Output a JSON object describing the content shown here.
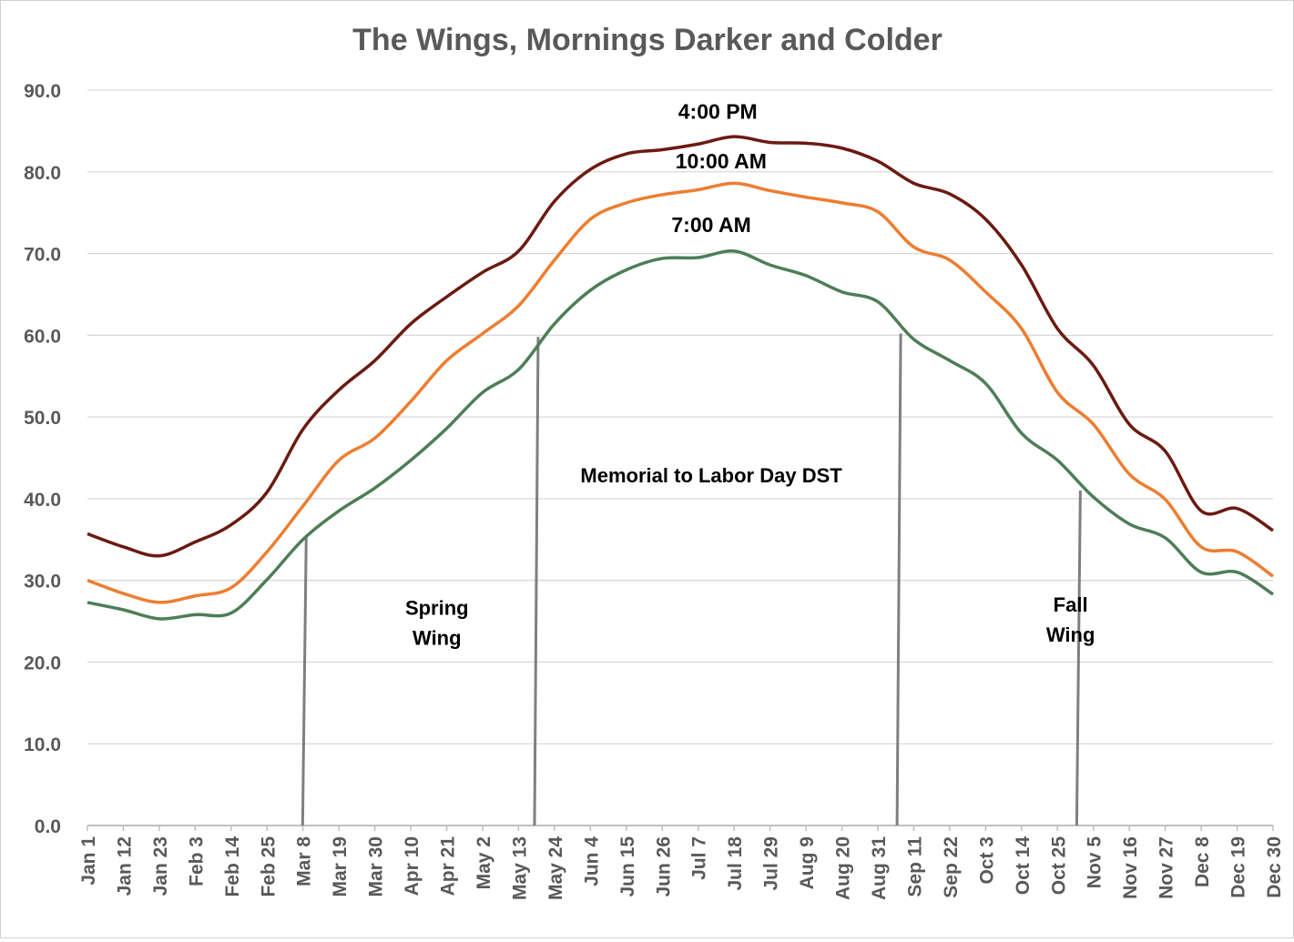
{
  "chart_data": {
    "type": "line",
    "title": "The Wings, Mornings Darker and Colder",
    "xlabel": "",
    "ylabel": "",
    "ylim": [
      0,
      90
    ],
    "yticks": [
      "0.0",
      "10.0",
      "20.0",
      "30.0",
      "40.0",
      "50.0",
      "60.0",
      "70.0",
      "80.0",
      "90.0"
    ],
    "grid": true,
    "legend": "none (series labelled inline)",
    "categories": [
      "Jan 1",
      "Jan 12",
      "Jan 23",
      "Feb 3",
      "Feb 14",
      "Feb 25",
      "Mar 8",
      "Mar 19",
      "Mar 30",
      "Apr 10",
      "Apr 21",
      "May 2",
      "May 13",
      "May 24",
      "Jun 4",
      "Jun 15",
      "Jun 26",
      "Jul 7",
      "Jul 18",
      "Jul 29",
      "Aug 9",
      "Aug 20",
      "Aug 31",
      "Sep 11",
      "Sep 22",
      "Oct 3",
      "Oct 14",
      "Oct 25",
      "Nov 5",
      "Nov 16",
      "Nov 27",
      "Dec 8",
      "Dec 19",
      "Dec 30"
    ],
    "series": [
      {
        "name": "4:00 PM",
        "color": "#6b1a12",
        "values": [
          35.7,
          34.1,
          33.0,
          34.7,
          36.8,
          40.8,
          48.5,
          53.3,
          56.9,
          61.4,
          64.7,
          67.7,
          70.3,
          76.4,
          80.3,
          82.2,
          82.7,
          83.4,
          84.3,
          83.6,
          83.5,
          82.9,
          81.3,
          78.6,
          77.3,
          74.2,
          68.6,
          60.8,
          56.3,
          49.1,
          45.8,
          38.5,
          38.8,
          36.1
        ]
      },
      {
        "name": "10:00 AM",
        "color": "#ed7d31",
        "values": [
          30.0,
          28.4,
          27.3,
          28.1,
          29.1,
          33.5,
          39.1,
          44.7,
          47.4,
          51.9,
          56.9,
          60.2,
          63.6,
          69.2,
          74.2,
          76.2,
          77.2,
          77.8,
          78.6,
          77.7,
          76.9,
          76.2,
          75.1,
          70.8,
          69.2,
          65.3,
          60.8,
          53.0,
          49.1,
          43.0,
          39.9,
          34.1,
          33.5,
          30.5
        ]
      },
      {
        "name": "7:00 AM",
        "color": "#4e7d57",
        "values": [
          27.3,
          26.4,
          25.3,
          25.8,
          26.0,
          30.1,
          35.0,
          38.5,
          41.3,
          44.7,
          48.6,
          53.0,
          55.8,
          61.4,
          65.5,
          68.0,
          69.4,
          69.5,
          70.3,
          68.6,
          67.3,
          65.3,
          64.1,
          59.5,
          56.9,
          54.1,
          48.0,
          44.7,
          40.2,
          36.9,
          35.2,
          31.0,
          31.0,
          28.3
        ]
      }
    ],
    "series_labels": [
      {
        "text": "4:00 PM",
        "x": "Jul 13",
        "y": 86.5
      },
      {
        "text": "10:00 AM",
        "x": "Jul 14",
        "y": 80.4
      },
      {
        "text": "7:00 AM",
        "x": "Jul 11",
        "y": 72.6
      }
    ],
    "markers": [
      {
        "x": "Mar 9",
        "y": 35.5
      },
      {
        "x": "May 19",
        "y": 59.8
      },
      {
        "x": "Sep 7",
        "y": 60.2
      },
      {
        "x": "Nov 1",
        "y": 41.0
      }
    ],
    "marker_color": "#7f7f7f",
    "annotations": [
      {
        "lines": [
          "Spring",
          "Wing"
        ],
        "x": "Apr 18",
        "y": 25.8
      },
      {
        "lines": [
          "Memorial to Labor Day DST"
        ],
        "x": "Jul 11",
        "y": 42.0
      },
      {
        "lines": [
          "Fall",
          "Wing"
        ],
        "x": "Oct 29",
        "y": 26.2
      }
    ]
  }
}
